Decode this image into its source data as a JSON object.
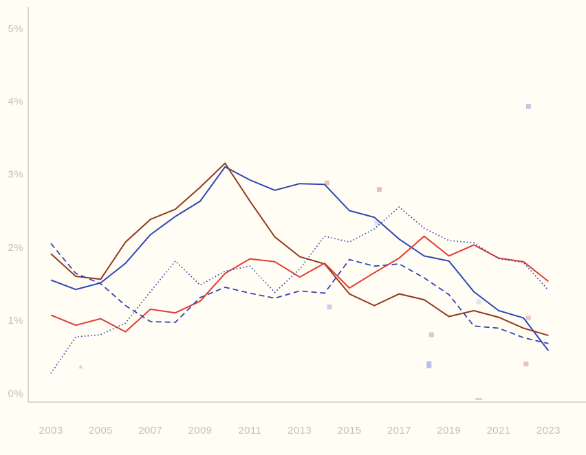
{
  "chart_data": {
    "type": "line",
    "title": "",
    "xlabel": "",
    "ylabel": "",
    "grid": false,
    "legend": "none",
    "x": [
      2003,
      2004,
      2005,
      2006,
      2007,
      2008,
      2009,
      2010,
      2011,
      2012,
      2013,
      2014,
      2015,
      2016,
      2017,
      2018,
      2019,
      2020,
      2021,
      2022,
      2023
    ],
    "x_tick_labels": [
      "2003",
      "2005",
      "2007",
      "2009",
      "2011",
      "2013",
      "2015",
      "2017",
      "2019",
      "2021",
      "2023"
    ],
    "x_tick_values": [
      2003,
      2005,
      2007,
      2009,
      2011,
      2013,
      2015,
      2017,
      2019,
      2021,
      2023
    ],
    "y_tick_labels": [
      "0%",
      "1%",
      "2%",
      "3%",
      "4%",
      "5%"
    ],
    "y_tick_values": [
      0,
      1,
      2,
      3,
      4,
      5
    ],
    "xlim": [
      2002.1,
      2024.5
    ],
    "ylim": [
      -0.12,
      5.3
    ],
    "series": [
      {
        "name": "blue-solid",
        "style": "solid",
        "color": "#2e46b4",
        "width": 2,
        "values": [
          1.55,
          1.42,
          1.51,
          1.78,
          2.17,
          2.42,
          2.63,
          3.1,
          2.92,
          2.78,
          2.87,
          2.86,
          2.5,
          2.41,
          2.11,
          1.88,
          1.81,
          1.39,
          1.13,
          1.03,
          0.58
        ]
      },
      {
        "name": "darkred-solid",
        "style": "solid",
        "color": "#93381f",
        "width": 2,
        "values": [
          1.91,
          1.6,
          1.56,
          2.07,
          2.38,
          2.52,
          2.82,
          3.15,
          2.63,
          2.14,
          1.87,
          1.77,
          1.36,
          1.2,
          1.36,
          1.28,
          1.05,
          1.13,
          1.04,
          0.89,
          0.79
        ]
      },
      {
        "name": "red-solid",
        "style": "solid",
        "color": "#e23b32",
        "width": 2,
        "values": [
          1.07,
          0.93,
          1.02,
          0.84,
          1.15,
          1.1,
          1.26,
          1.64,
          1.84,
          1.8,
          1.59,
          1.78,
          1.44,
          1.65,
          1.85,
          2.15,
          1.88,
          2.03,
          1.85,
          1.8,
          1.53
        ]
      },
      {
        "name": "blue-dashed",
        "style": "dashed",
        "color": "#2e46b4",
        "width": 1.8,
        "values": [
          2.05,
          1.64,
          1.5,
          1.2,
          0.98,
          0.97,
          1.31,
          1.45,
          1.37,
          1.3,
          1.4,
          1.37,
          1.83,
          1.74,
          1.77,
          1.58,
          1.35,
          0.92,
          0.89,
          0.76,
          0.68
        ]
      },
      {
        "name": "blue-dotted",
        "style": "dotted",
        "color": "#2e46b4",
        "width": 1.7,
        "values": [
          0.27,
          0.77,
          0.8,
          0.96,
          1.39,
          1.81,
          1.48,
          1.67,
          1.74,
          1.38,
          1.7,
          2.15,
          2.07,
          2.25,
          2.55,
          2.26,
          2.09,
          2.06,
          1.84,
          1.79,
          1.41
        ]
      }
    ],
    "scatter_points": [
      {
        "x": 2022.2,
        "y": 3.93,
        "color": "lavender",
        "shape": "square",
        "opacity": 0.7
      },
      {
        "x": 2014.1,
        "y": 2.88,
        "color": "pink",
        "shape": "square",
        "opacity": 0.7
      },
      {
        "x": 2016.2,
        "y": 2.79,
        "color": "pink",
        "shape": "square",
        "opacity": 0.75
      },
      {
        "x": 2016.1,
        "y": 2.33,
        "color": "lavender",
        "shape": "square",
        "opacity": 0.35
      },
      {
        "x": 2014.2,
        "y": 1.18,
        "color": "lavender",
        "shape": "square",
        "opacity": 0.6
      },
      {
        "x": 2020.2,
        "y": 1.25,
        "color": "lavender",
        "shape": "square",
        "opacity": 0.35
      },
      {
        "x": 2022.2,
        "y": 1.03,
        "color": "pink",
        "shape": "square",
        "opacity": 0.6
      },
      {
        "x": 2018.3,
        "y": 0.8,
        "color": "pink",
        "shape": "square",
        "opacity": 0.7
      },
      {
        "x": 2018.2,
        "y": 0.39,
        "color": "lavender",
        "shape": "tallsquare",
        "opacity": 0.8
      },
      {
        "x": 2022.1,
        "y": 0.4,
        "color": "pink",
        "shape": "square",
        "opacity": 0.7
      },
      {
        "x": 2004.2,
        "y": 0.36,
        "color": "lavender",
        "shape": "triangle",
        "opacity": 0.55
      },
      {
        "x": 2020.2,
        "y": -0.08,
        "color": "pink",
        "shape": "dash",
        "opacity": 0.6
      }
    ],
    "marker_colors": {
      "lavender": "#a9aede",
      "pink": "#dfab9f"
    },
    "axis_color": "#c9c4b8",
    "tick_text_color": "#c8bfb1",
    "background_color": "#fffdf4"
  }
}
